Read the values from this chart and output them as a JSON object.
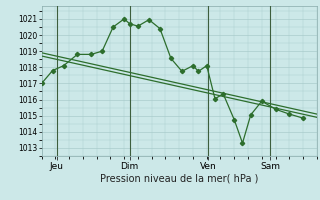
{
  "background_color": "#cce8e8",
  "grid_color": "#aacccc",
  "line_color": "#2d6e2d",
  "xlabel": "Pression niveau de la mer( hPa )",
  "ylim": [
    1012.5,
    1021.8
  ],
  "yticks": [
    1013,
    1014,
    1015,
    1016,
    1017,
    1018,
    1019,
    1020,
    1021
  ],
  "xlim": [
    0,
    10.0
  ],
  "day_labels": [
    "Jeu",
    "Dim",
    "Ven",
    "Sam"
  ],
  "day_positions": [
    0.55,
    3.2,
    6.05,
    8.3
  ],
  "series1_x": [
    0.0,
    0.4,
    0.8,
    1.3,
    1.8,
    2.2,
    2.6,
    3.0,
    3.2,
    3.5,
    3.9,
    4.3,
    4.7,
    5.1,
    5.5,
    5.7,
    6.0,
    6.3,
    6.6,
    7.0,
    7.3,
    7.6,
    8.0,
    8.5,
    9.0,
    9.5
  ],
  "series1_y": [
    1017.0,
    1017.8,
    1018.1,
    1018.8,
    1018.8,
    1019.0,
    1020.5,
    1021.0,
    1020.7,
    1020.55,
    1020.95,
    1020.4,
    1018.55,
    1017.75,
    1018.1,
    1017.75,
    1018.1,
    1016.05,
    1016.35,
    1014.75,
    1013.3,
    1015.05,
    1015.9,
    1015.4,
    1015.1,
    1014.85
  ],
  "series2_x": [
    0.0,
    10.0
  ],
  "series2_y": [
    1018.9,
    1015.1
  ],
  "series3_x": [
    0.0,
    10.0
  ],
  "series3_y": [
    1018.7,
    1014.9
  ]
}
